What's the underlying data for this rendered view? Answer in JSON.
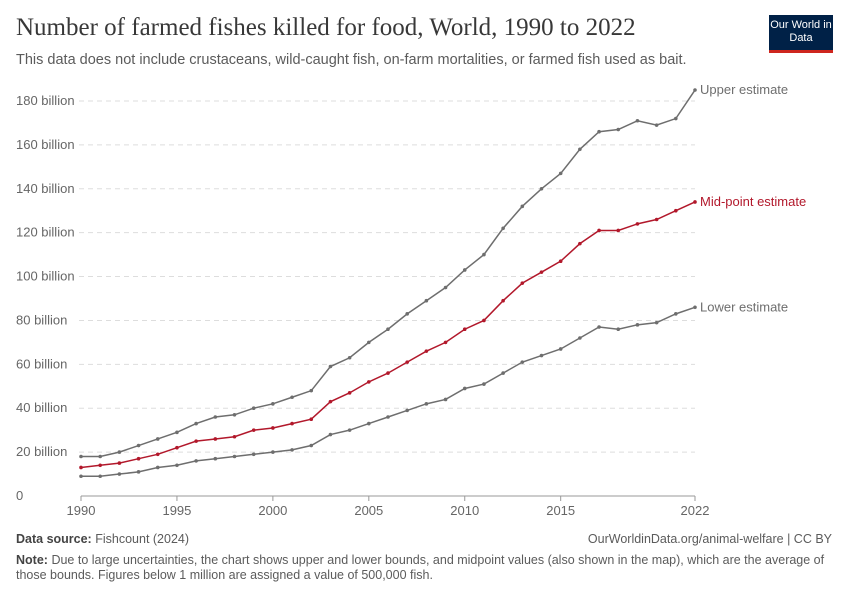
{
  "header": {
    "title": "Number of farmed fishes killed for food, World, 1990 to 2022",
    "subtitle": "This data does not include crustaceans, wild-caught fish, on-farm mortalities, or farmed fish used as bait.",
    "logo_text": "Our World in Data"
  },
  "footer": {
    "source_label": "Data source:",
    "source": "Fishcount (2024)",
    "url": "OurWorldinData.org/animal-welfare | CC BY",
    "note_label": "Note:",
    "note": "Due to large uncertainties, the chart shows upper and lower bounds, and midpoint values (also shown in the map), which are the average of those bounds. Figures below 1 million are assigned a value of 500,000 fish."
  },
  "colors": {
    "grey": "#6e6e6e",
    "red": "#b2182b",
    "logo_bg": "#002147",
    "logo_accent": "#ce261e"
  },
  "chart_data": {
    "type": "line",
    "title": "Number of farmed fishes killed for food, World, 1990 to 2022",
    "x": [
      1990,
      1991,
      1992,
      1993,
      1994,
      1995,
      1996,
      1997,
      1998,
      1999,
      2000,
      2001,
      2002,
      2003,
      2004,
      2005,
      2006,
      2007,
      2008,
      2009,
      2010,
      2011,
      2012,
      2013,
      2014,
      2015,
      2016,
      2017,
      2018,
      2019,
      2020,
      2021,
      2022
    ],
    "xticks": [
      "1990",
      "1995",
      "2000",
      "2005",
      "2010",
      "2015",
      "2022"
    ],
    "xtick_values": [
      1990,
      1995,
      2000,
      2005,
      2010,
      2015,
      2022
    ],
    "yticks": [
      "0",
      "20 billion",
      "40 billion",
      "60 billion",
      "80 billion",
      "100 billion",
      "120 billion",
      "140 billion",
      "160 billion",
      "180 billion"
    ],
    "ytick_values": [
      0,
      20,
      40,
      60,
      80,
      100,
      120,
      140,
      160,
      180
    ],
    "ylim": [
      0,
      180
    ],
    "y_unit": "billion",
    "grid": true,
    "legend": "inline-right",
    "series": [
      {
        "name": "Upper estimate",
        "color": "#6e6e6e",
        "values": [
          18,
          18,
          20,
          23,
          26,
          29,
          33,
          36,
          37,
          40,
          42,
          45,
          48,
          59,
          63,
          70,
          76,
          83,
          89,
          95,
          103,
          110,
          122,
          132,
          140,
          147,
          158,
          166,
          167,
          171,
          169,
          172,
          185
        ]
      },
      {
        "name": "Mid-point estimate",
        "color": "#b2182b",
        "values": [
          13,
          14,
          15,
          17,
          19,
          22,
          25,
          26,
          27,
          30,
          31,
          33,
          35,
          43,
          47,
          52,
          56,
          61,
          66,
          70,
          76,
          80,
          89,
          97,
          102,
          107,
          115,
          121,
          121,
          124,
          126,
          130,
          134
        ]
      },
      {
        "name": "Lower estimate",
        "color": "#6e6e6e",
        "values": [
          9,
          9,
          10,
          11,
          13,
          14,
          16,
          17,
          18,
          19,
          20,
          21,
          23,
          28,
          30,
          33,
          36,
          39,
          42,
          44,
          49,
          51,
          56,
          61,
          64,
          67,
          72,
          77,
          76,
          78,
          79,
          83,
          86
        ]
      }
    ]
  }
}
